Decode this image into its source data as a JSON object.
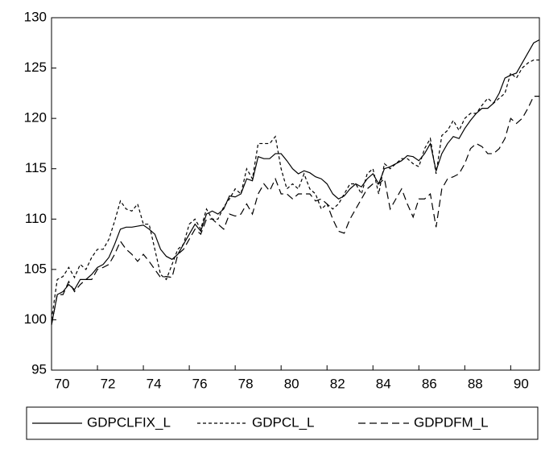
{
  "chart_data": {
    "type": "line",
    "x": [
      1970,
      1970.25,
      1970.5,
      1970.75,
      1971,
      1971.25,
      1971.5,
      1971.75,
      1972,
      1972.25,
      1972.5,
      1972.75,
      1973,
      1973.25,
      1973.5,
      1973.75,
      1974,
      1974.25,
      1974.5,
      1974.75,
      1975,
      1975.25,
      1975.5,
      1975.75,
      1976,
      1976.25,
      1976.5,
      1976.75,
      1977,
      1977.25,
      1977.5,
      1977.75,
      1978,
      1978.25,
      1978.5,
      1978.75,
      1979,
      1979.25,
      1979.5,
      1979.75,
      1980,
      1980.25,
      1980.5,
      1980.75,
      1981,
      1981.25,
      1981.5,
      1981.75,
      1982,
      1982.25,
      1982.5,
      1982.75,
      1983,
      1983.25,
      1983.5,
      1983.75,
      1984,
      1984.25,
      1984.5,
      1984.75,
      1985,
      1985.25,
      1985.5,
      1985.75,
      1986,
      1986.25,
      1986.5,
      1986.75,
      1987,
      1987.25,
      1987.5,
      1987.75,
      1988,
      1988.25,
      1988.5,
      1988.75,
      1989,
      1989.25,
      1989.5,
      1989.75,
      1990,
      1990.25,
      1990.5,
      1990.75,
      1991,
      1991.25
    ],
    "series": [
      {
        "name": "GDPCLFIX_L",
        "color": "#000000",
        "line_style": "solid",
        "values": [
          99.5,
          102.5,
          102.8,
          103.5,
          103,
          104,
          104,
          104.5,
          105.2,
          105.5,
          106.2,
          107.5,
          109,
          109.2,
          109.2,
          109.3,
          109.4,
          109,
          108.5,
          107,
          106.3,
          106,
          106.5,
          107.5,
          108.5,
          109.5,
          108.8,
          110.5,
          110.8,
          110.5,
          111,
          112.3,
          112.2,
          112.5,
          114,
          113.8,
          116.2,
          116,
          116,
          116.5,
          116.5,
          115.8,
          115,
          114.5,
          114.8,
          114.6,
          114.2,
          114,
          113.5,
          112.5,
          112,
          112.3,
          113,
          113.5,
          113.2,
          114,
          114.5,
          113.5,
          115,
          115.2,
          115.5,
          115.8,
          116.3,
          116.2,
          115.8,
          116.5,
          117.5,
          114.8,
          116.5,
          117.5,
          118.2,
          118,
          119,
          119.8,
          120.5,
          121,
          121,
          121.5,
          122.5,
          124,
          124.3,
          124.5,
          125.5,
          126.5,
          127.5,
          127.8
        ]
      },
      {
        "name": "GDPCL_L",
        "color": "#000000",
        "line_style": "dashed",
        "values": [
          100,
          104,
          104.3,
          105.2,
          104.2,
          105.5,
          105,
          106.2,
          107,
          107,
          108,
          109.8,
          111.8,
          111,
          110.8,
          111.5,
          109.5,
          109.5,
          107,
          104.5,
          104,
          105.5,
          107,
          107.5,
          109.5,
          110,
          109,
          111,
          110,
          110,
          111.2,
          112,
          113,
          112.5,
          115,
          114,
          117.5,
          117.5,
          117.5,
          118.2,
          115,
          113,
          113.5,
          113,
          114.5,
          113,
          112.5,
          111,
          111.5,
          111,
          111.5,
          112.5,
          113.5,
          113.5,
          112.5,
          114.5,
          115,
          112.5,
          115.5,
          115,
          115.5,
          116,
          116,
          115.5,
          115.2,
          117,
          118,
          114.5,
          118.3,
          118.8,
          119.8,
          118.8,
          120,
          120.5,
          120.5,
          121.3,
          122,
          121.5,
          122,
          122.5,
          124.5,
          124,
          125,
          125.5,
          125.8,
          125.8
        ]
      },
      {
        "name": "GDPDFM_L",
        "color": "#000000",
        "line_style": "long-dashed",
        "values": [
          99.5,
          102.5,
          102.5,
          103.8,
          102.8,
          103.5,
          104,
          104,
          105,
          105.2,
          105.5,
          106.5,
          107.8,
          107,
          106.5,
          105.8,
          106.5,
          105.8,
          105,
          104.2,
          104.3,
          104.2,
          106.5,
          107,
          108,
          109,
          108.5,
          110,
          110,
          109.5,
          109,
          110.5,
          110.3,
          110.5,
          111.5,
          110.5,
          112.5,
          113.5,
          112.8,
          114,
          112.5,
          112.5,
          112,
          112.5,
          112.5,
          112.5,
          111.8,
          112,
          111.5,
          110,
          108.8,
          108.6,
          110,
          111,
          112,
          113,
          113.5,
          113.5,
          114,
          111,
          112,
          113,
          111.5,
          110.2,
          112,
          112,
          112.5,
          109.2,
          113,
          114,
          114.2,
          114.5,
          115.5,
          117,
          117.5,
          117.2,
          116.5,
          116.5,
          117,
          118,
          120,
          119.5,
          120,
          121,
          122.2,
          122.2
        ]
      }
    ],
    "xlim": [
      1970,
      1991.25
    ],
    "xticks": [
      {
        "value": 1970,
        "label": "70"
      },
      {
        "value": 1972,
        "label": "72"
      },
      {
        "value": 1974,
        "label": "74"
      },
      {
        "value": 1976,
        "label": "76"
      },
      {
        "value": 1978,
        "label": "78"
      },
      {
        "value": 1980,
        "label": "80"
      },
      {
        "value": 1982,
        "label": "82"
      },
      {
        "value": 1984,
        "label": "84"
      },
      {
        "value": 1986,
        "label": "86"
      },
      {
        "value": 1988,
        "label": "88"
      },
      {
        "value": 1990,
        "label": "90"
      }
    ],
    "ylim": [
      95,
      130
    ],
    "yticks": [
      95,
      100,
      105,
      110,
      115,
      120,
      125,
      130
    ],
    "grid": false,
    "legend": "bottom"
  }
}
